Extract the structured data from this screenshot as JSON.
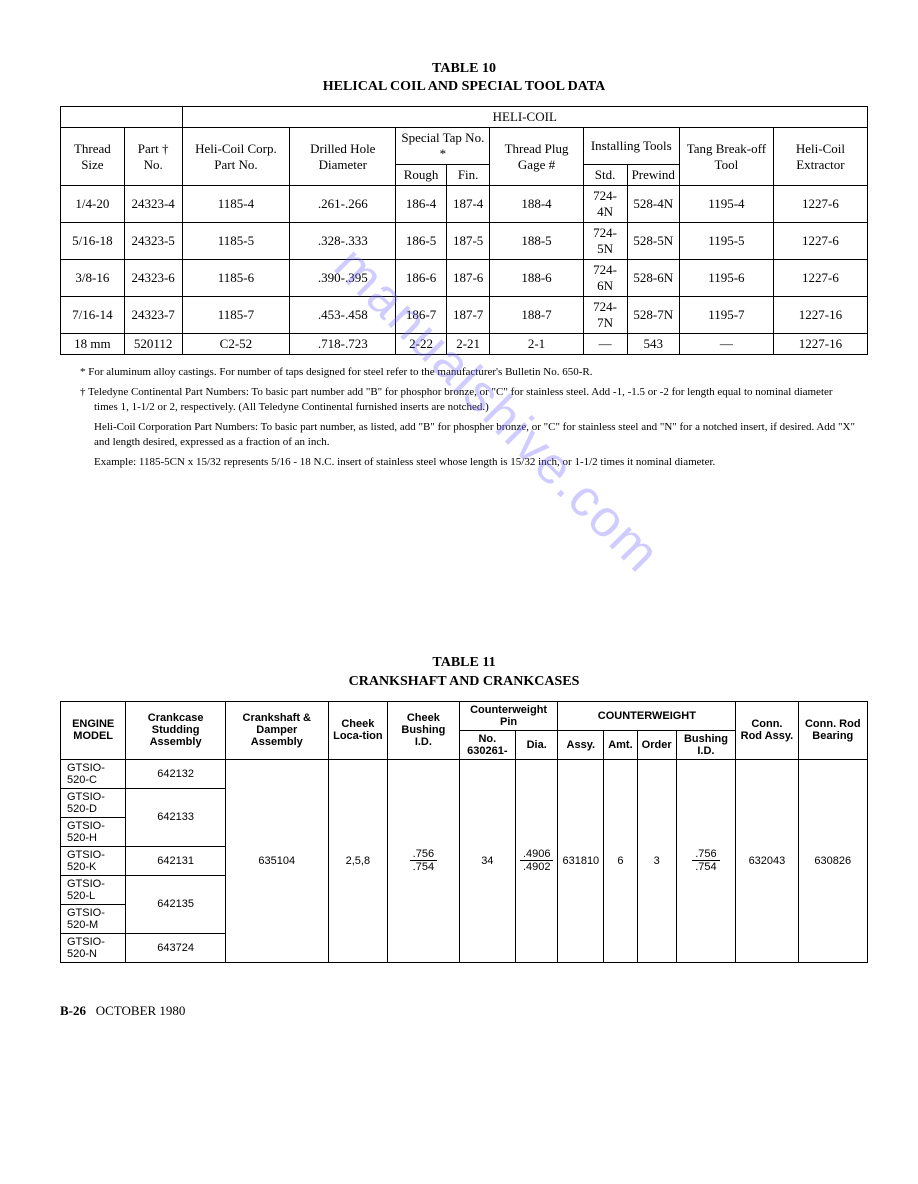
{
  "watermark": "manualshive.com",
  "table10": {
    "title_line1": "TABLE 10",
    "title_line2": "HELICAL COIL AND SPECIAL TOOL DATA",
    "top_heading": "HELI-COIL",
    "headers": {
      "thread_size": "Thread Size",
      "part_no": "Part † No.",
      "helicoil_corp": "Heli-Coil Corp. Part No.",
      "drilled_hole": "Drilled Hole Diameter",
      "special_tap": "Special Tap No. *",
      "rough": "Rough",
      "fin": "Fin.",
      "thread_plug": "Thread Plug Gage #",
      "installing": "Installing Tools",
      "std": "Std.",
      "prewind": "Prewind",
      "tang_break": "Tang Break-off Tool",
      "extractor": "Heli-Coil Extractor"
    },
    "rows": [
      {
        "size": "1/4-20",
        "part": "24323-4",
        "corp": "1185-4",
        "drill": ".261-.266",
        "rough": "186-4",
        "fin": "187-4",
        "gage": "188-4",
        "std": "724-4N",
        "pre": "528-4N",
        "tang": "1195-4",
        "ext": "1227-6"
      },
      {
        "size": "5/16-18",
        "part": "24323-5",
        "corp": "1185-5",
        "drill": ".328-.333",
        "rough": "186-5",
        "fin": "187-5",
        "gage": "188-5",
        "std": "724-5N",
        "pre": "528-5N",
        "tang": "1195-5",
        "ext": "1227-6"
      },
      {
        "size": "3/8-16",
        "part": "24323-6",
        "corp": "1185-6",
        "drill": ".390-.395",
        "rough": "186-6",
        "fin": "187-6",
        "gage": "188-6",
        "std": "724-6N",
        "pre": "528-6N",
        "tang": "1195-6",
        "ext": "1227-6"
      },
      {
        "size": "7/16-14",
        "part": "24323-7",
        "corp": "1185-7",
        "drill": ".453-.458",
        "rough": "186-7",
        "fin": "187-7",
        "gage": "188-7",
        "std": "724-7N",
        "pre": "528-7N",
        "tang": "1195-7",
        "ext": "1227-16"
      },
      {
        "size": "18 mm",
        "part": "520112",
        "corp": "C2-52",
        "drill": ".718-.723",
        "rough": "2-22",
        "fin": "2-21",
        "gage": "2-1",
        "std": "—",
        "pre": "543",
        "tang": "—",
        "ext": "1227-16"
      }
    ],
    "notes": {
      "n1": "*   For aluminum alloy castings. For number of taps designed for steel refer to the manufacturer's Bulletin No. 650-R.",
      "n2": "†   Teledyne Continental Part Numbers: To basic part number add \"B\" for phosphor bronze, or \"C\" for stainless steel. Add -1, -1.5 or -2 for length equal to nominal diameter times 1, 1-1/2 or 2, respectively. (All Teledyne Continental furnished inserts are notched.)",
      "n3": "Heli-Coil Corporation Part Numbers: To basic part number, as listed, add \"B\" for phospher bronze, or \"C\" for stainless steel and \"N\" for a notched insert, if desired. Add \"X\" and length desired, expressed as a fraction of an inch.",
      "n4": "Example: 1185-5CN x 15/32 represents 5/16 - 18 N.C. insert of stainless steel whose length is 15/32 inch, or 1-1/2 times it nominal diameter."
    }
  },
  "table11": {
    "title_line1": "TABLE 11",
    "title_line2": "CRANKSHAFT AND CRANKCASES",
    "headers": {
      "engine_model": "ENGINE MODEL",
      "crankcase": "Crankcase Studding Assembly",
      "crankshaft": "Crankshaft & Damper Assembly",
      "cheek_loc": "Cheek Loca-tion",
      "cheek_bush": "Cheek Bushing I.D.",
      "cw_pin": "Counterweight Pin",
      "pin_no": "No. 630261-",
      "pin_dia": "Dia.",
      "counterweight": "COUNTERWEIGHT",
      "assy": "Assy.",
      "amt": "Amt.",
      "order": "Order",
      "bush_id": "Bushing I.D.",
      "conn_rod_assy": "Conn. Rod Assy.",
      "conn_rod_brg": "Conn. Rod Bearing"
    },
    "models": [
      "GTSIO-520-C",
      "GTSIO-520-D",
      "GTSIO-520-H",
      "GTSIO-520-K",
      "GTSIO-520-L",
      "GTSIO-520-M",
      "GTSIO-520-N"
    ],
    "crankcase": {
      "c": "642132",
      "dh": "642133",
      "k": "642131",
      "lm": "642135",
      "n": "643724"
    },
    "crankshaft_assy": "635104",
    "cheek_loc": "2,5,8",
    "cheek_bush_top": ".756",
    "cheek_bush_bot": ".754",
    "pin_no": "34",
    "pin_dia_top": ".4906",
    "pin_dia_bot": ".4902",
    "cw_assy": "631810",
    "cw_amt": "6",
    "cw_order": "3",
    "cw_bush_top": ".756",
    "cw_bush_bot": ".754",
    "conn_rod": "632043",
    "conn_brg": "630826"
  },
  "footer": {
    "page": "B-26",
    "date": "OCTOBER 1980"
  }
}
